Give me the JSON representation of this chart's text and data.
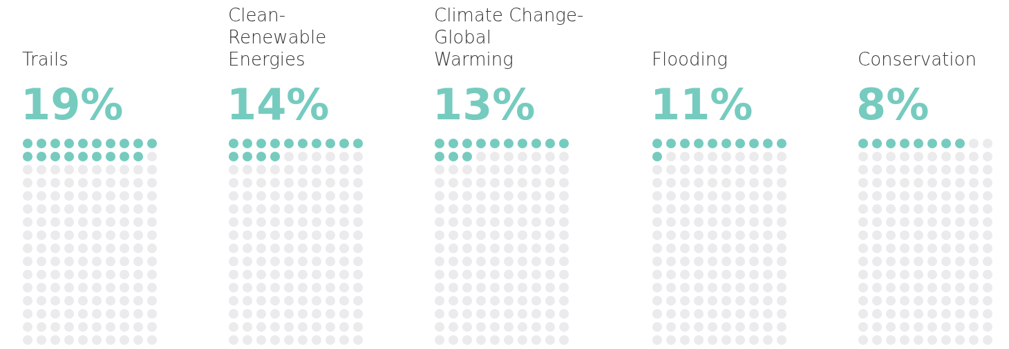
{
  "chart_data": {
    "type": "other",
    "categories": [
      "Trails",
      "Clean-\nRenewable\nEnergies",
      "Climate Change-\nGlobal\nWarming",
      "Flooding",
      "Conservation"
    ],
    "values": [
      19,
      14,
      13,
      11,
      8
    ],
    "value_labels": [
      "19%",
      "14%",
      "13%",
      "11%",
      "8%"
    ],
    "color": "#76cbbf"
  }
}
